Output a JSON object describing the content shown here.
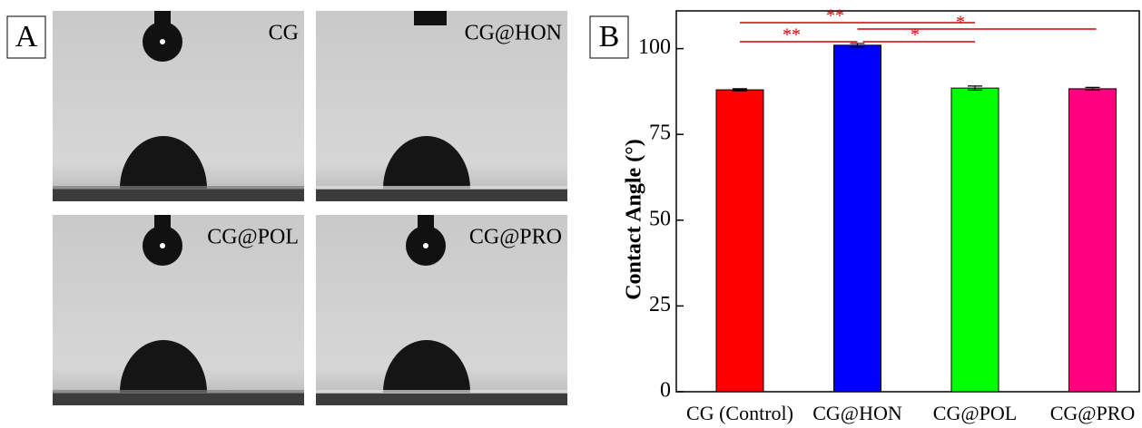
{
  "photos": {
    "panel_label": "A",
    "labels": [
      "CG",
      "CG@HON",
      "CG@POL",
      "CG@PRO"
    ]
  },
  "chart_data": {
    "type": "bar",
    "panel_label": "B",
    "y_label": "Contact Angle (°)",
    "categories": [
      "CG (Control)",
      "CG@HON",
      "CG@POL",
      "CG@PRO"
    ],
    "values": [
      88,
      101,
      88.5,
      88.3
    ],
    "errors": [
      0.3,
      0.5,
      0.6,
      0.4
    ],
    "colors": [
      "#ff0000",
      "#0000ff",
      "#00ff00",
      "#ff0080"
    ],
    "ylim": [
      0,
      111
    ],
    "yticks": [
      0,
      25,
      50,
      75,
      100
    ],
    "annotations": [
      "**",
      "*",
      "**",
      "*"
    ]
  }
}
